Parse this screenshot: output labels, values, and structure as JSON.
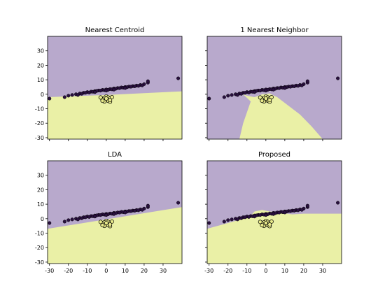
{
  "colors": {
    "region_upper": "#b8a9cc",
    "region_lower": "#eaf0a6",
    "class_upper_point": "#2a1040",
    "class_lower_point": "#e8ea8a",
    "point_edge": "#000000"
  },
  "chart_data": [
    {
      "type": "scatter",
      "title": "Nearest Centroid",
      "xlim": [
        -31,
        40
      ],
      "ylim": [
        -31,
        40
      ],
      "xticks": [
        -30,
        -20,
        -10,
        0,
        10,
        20,
        30
      ],
      "yticks": [
        -30,
        -20,
        -10,
        0,
        10,
        20,
        30
      ],
      "show_x_ticklabels": false,
      "show_y_ticklabels": true,
      "decision_boundary": [
        [
          -31,
          -2
        ],
        [
          0,
          -0.5
        ],
        [
          40,
          2
        ]
      ]
    },
    {
      "type": "scatter",
      "title": "1 Nearest Neighbor",
      "xlim": [
        -31,
        40
      ],
      "ylim": [
        -31,
        40
      ],
      "xticks": [
        -30,
        -20,
        -10,
        0,
        10,
        20,
        30
      ],
      "yticks": [
        -30,
        -20,
        -10,
        0,
        10,
        20,
        30
      ],
      "show_x_ticklabels": false,
      "show_y_ticklabels": false,
      "decision_boundary": [
        [
          -31,
          0
        ],
        [
          -12,
          0
        ],
        [
          -8,
          -5
        ],
        [
          -12,
          -20
        ],
        [
          -14,
          -31
        ],
        [
          30,
          -31
        ],
        [
          24,
          -22
        ],
        [
          18,
          -14
        ],
        [
          12,
          -8
        ],
        [
          6,
          -2
        ],
        [
          2,
          0.5
        ],
        [
          -2,
          0
        ],
        [
          -6,
          -2
        ],
        [
          -10,
          -1
        ],
        [
          -12,
          0
        ]
      ]
    },
    {
      "type": "scatter",
      "title": "LDA",
      "xlim": [
        -31,
        40
      ],
      "ylim": [
        -31,
        40
      ],
      "xticks": [
        -30,
        -20,
        -10,
        0,
        10,
        20,
        30
      ],
      "yticks": [
        -30,
        -20,
        -10,
        0,
        10,
        20,
        30
      ],
      "show_x_ticklabels": true,
      "show_y_ticklabels": true,
      "decision_boundary": [
        [
          -31,
          -7
        ],
        [
          40,
          8
        ]
      ]
    },
    {
      "type": "scatter",
      "title": "Proposed",
      "xlim": [
        -31,
        40
      ],
      "ylim": [
        -31,
        40
      ],
      "xticks": [
        -30,
        -20,
        -10,
        0,
        10,
        20,
        30
      ],
      "yticks": [
        -30,
        -20,
        -10,
        0,
        10,
        20,
        30
      ],
      "show_x_ticklabels": true,
      "show_y_ticklabels": false,
      "decision_boundary": [
        [
          -31,
          -7
        ],
        [
          -20,
          -3
        ],
        [
          -12,
          0
        ],
        [
          -8,
          2
        ],
        [
          -6,
          5
        ],
        [
          -2,
          6
        ],
        [
          2,
          5
        ],
        [
          8,
          4
        ],
        [
          14,
          3
        ],
        [
          20,
          3.5
        ],
        [
          30,
          3.5
        ],
        [
          40,
          3.5
        ]
      ]
    }
  ],
  "scatter_points": {
    "upper_class": [
      [
        -30,
        -3
      ],
      [
        -22,
        -2
      ],
      [
        -20,
        -1
      ],
      [
        -18,
        -0.5
      ],
      [
        -16,
        0
      ],
      [
        -14,
        0.5
      ],
      [
        -12,
        1
      ],
      [
        -10,
        1.5
      ],
      [
        -8,
        1.8
      ],
      [
        -6,
        2.2
      ],
      [
        -4,
        2.6
      ],
      [
        -2,
        3
      ],
      [
        0,
        3.3
      ],
      [
        2,
        3.6
      ],
      [
        4,
        4
      ],
      [
        6,
        4.3
      ],
      [
        8,
        4.7
      ],
      [
        10,
        5
      ],
      [
        12,
        5.3
      ],
      [
        14,
        5.6
      ],
      [
        16,
        6
      ],
      [
        18,
        6.4
      ],
      [
        20,
        7
      ],
      [
        22,
        8
      ],
      [
        22,
        9
      ],
      [
        38,
        11
      ],
      [
        -15,
        -0.5
      ],
      [
        -13,
        0.3
      ],
      [
        -11,
        1
      ],
      [
        -9,
        1.2
      ],
      [
        -7,
        1.7
      ],
      [
        -5,
        2.3
      ],
      [
        -3,
        2.5
      ],
      [
        -1,
        2.8
      ],
      [
        1,
        3.1
      ],
      [
        3,
        3.4
      ],
      [
        5,
        3.8
      ],
      [
        7,
        4.2
      ],
      [
        9,
        4.5
      ],
      [
        11,
        4.9
      ],
      [
        13,
        5.2
      ],
      [
        15,
        5.5
      ],
      [
        17,
        5.8
      ],
      [
        19,
        6.1
      ],
      [
        -6,
        1.5
      ],
      [
        0,
        2.5
      ],
      [
        4,
        3.2
      ],
      [
        10,
        4.3
      ]
    ],
    "lower_class": [
      [
        0,
        -1.5
      ],
      [
        -1,
        -2.5
      ],
      [
        1,
        -2.2
      ],
      [
        2,
        -3
      ],
      [
        -2,
        -3.5
      ],
      [
        0,
        -4
      ],
      [
        1,
        -4.5
      ],
      [
        -1,
        -5
      ],
      [
        2,
        -5.2
      ],
      [
        3,
        -2
      ],
      [
        -3,
        -2.2
      ],
      [
        0,
        -3
      ],
      [
        2,
        -4
      ],
      [
        -2,
        -4.5
      ]
    ]
  }
}
